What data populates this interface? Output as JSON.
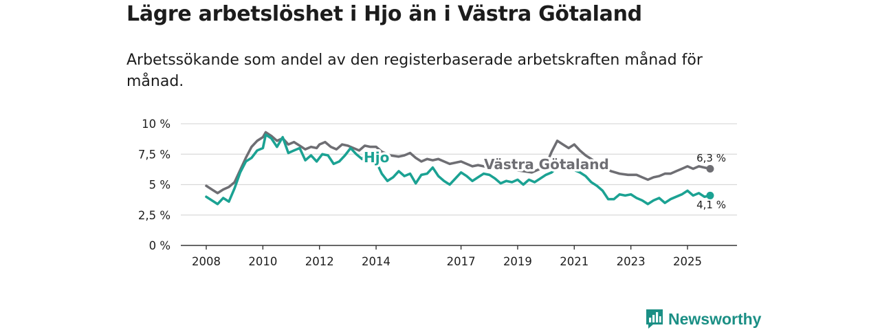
{
  "header": {
    "title": "Lägre arbetslöshet i Hjo än i Västra Götaland",
    "subtitle": "Arbetssökande som andel av den registerbaserade arbetskraften månad för månad."
  },
  "brand": {
    "name": "Newsworthy",
    "icon": "bar-chart-icon",
    "color": "#1b8f85"
  },
  "chart_data": {
    "type": "line",
    "title": "Lägre arbetslöshet i Hjo än i Västra Götaland",
    "subtitle": "Arbetssökande som andel av den registerbaserade arbetskraften månad för månad.",
    "xlabel": "",
    "ylabel": "",
    "xlim": [
      2007.5,
      2026.5
    ],
    "ylim": [
      0,
      10
    ],
    "grid": true,
    "y_ticks": [
      {
        "value": 0,
        "label": "0 %"
      },
      {
        "value": 2.5,
        "label": "2,5 %"
      },
      {
        "value": 5,
        "label": "5 %"
      },
      {
        "value": 7.5,
        "label": "7,5 %"
      },
      {
        "value": 10,
        "label": "10 %"
      }
    ],
    "x_ticks": [
      {
        "value": 2008,
        "label": "2008"
      },
      {
        "value": 2010,
        "label": "2010"
      },
      {
        "value": 2012,
        "label": "2012"
      },
      {
        "value": 2014,
        "label": "2014"
      },
      {
        "value": 2017,
        "label": "2017"
      },
      {
        "value": 2019,
        "label": "2019"
      },
      {
        "value": 2021,
        "label": "2021"
      },
      {
        "value": 2023,
        "label": "2023"
      },
      {
        "value": 2025,
        "label": "2025"
      }
    ],
    "series": [
      {
        "name": "Västra Götaland",
        "color": "#6e6e73",
        "label": "Västra Götaland",
        "end_label": "6,3 %",
        "points": [
          [
            2008.0,
            4.9
          ],
          [
            2008.2,
            4.6
          ],
          [
            2008.4,
            4.3
          ],
          [
            2008.6,
            4.6
          ],
          [
            2008.8,
            4.8
          ],
          [
            2009.0,
            5.2
          ],
          [
            2009.2,
            6.2
          ],
          [
            2009.4,
            7.2
          ],
          [
            2009.6,
            8.1
          ],
          [
            2009.8,
            8.6
          ],
          [
            2010.0,
            8.9
          ],
          [
            2010.1,
            9.3
          ],
          [
            2010.3,
            9.0
          ],
          [
            2010.5,
            8.6
          ],
          [
            2010.7,
            8.8
          ],
          [
            2010.9,
            8.3
          ],
          [
            2011.1,
            8.5
          ],
          [
            2011.3,
            8.2
          ],
          [
            2011.5,
            7.9
          ],
          [
            2011.7,
            8.1
          ],
          [
            2011.9,
            8.0
          ],
          [
            2012.0,
            8.3
          ],
          [
            2012.2,
            8.5
          ],
          [
            2012.4,
            8.1
          ],
          [
            2012.6,
            7.9
          ],
          [
            2012.8,
            8.3
          ],
          [
            2013.0,
            8.2
          ],
          [
            2013.2,
            8.0
          ],
          [
            2013.4,
            7.8
          ],
          [
            2013.6,
            8.2
          ],
          [
            2013.8,
            8.1
          ],
          [
            2014.0,
            8.1
          ],
          [
            2014.2,
            7.7
          ],
          [
            2014.5,
            7.4
          ],
          [
            2014.8,
            7.3
          ],
          [
            2015.0,
            7.4
          ],
          [
            2015.2,
            7.6
          ],
          [
            2015.4,
            7.2
          ],
          [
            2015.6,
            6.9
          ],
          [
            2015.8,
            7.1
          ],
          [
            2016.0,
            7.0
          ],
          [
            2016.2,
            7.1
          ],
          [
            2016.4,
            6.9
          ],
          [
            2016.6,
            6.7
          ],
          [
            2016.8,
            6.8
          ],
          [
            2017.0,
            6.9
          ],
          [
            2017.2,
            6.7
          ],
          [
            2017.4,
            6.5
          ],
          [
            2017.6,
            6.6
          ],
          [
            2017.8,
            6.5
          ],
          [
            2018.0,
            6.4
          ],
          [
            2018.3,
            6.3
          ],
          [
            2018.6,
            6.4
          ],
          [
            2018.9,
            6.2
          ],
          [
            2019.2,
            6.1
          ],
          [
            2019.5,
            6.0
          ],
          [
            2019.8,
            6.3
          ],
          [
            2020.0,
            6.6
          ],
          [
            2020.2,
            7.7
          ],
          [
            2020.4,
            8.6
          ],
          [
            2020.6,
            8.3
          ],
          [
            2020.8,
            8.0
          ],
          [
            2021.0,
            8.3
          ],
          [
            2021.2,
            7.8
          ],
          [
            2021.4,
            7.4
          ],
          [
            2021.6,
            7.1
          ],
          [
            2021.8,
            6.8
          ],
          [
            2022.0,
            6.5
          ],
          [
            2022.3,
            6.1
          ],
          [
            2022.6,
            5.9
          ],
          [
            2022.9,
            5.8
          ],
          [
            2023.2,
            5.8
          ],
          [
            2023.4,
            5.6
          ],
          [
            2023.6,
            5.4
          ],
          [
            2023.8,
            5.6
          ],
          [
            2024.0,
            5.7
          ],
          [
            2024.2,
            5.9
          ],
          [
            2024.4,
            5.9
          ],
          [
            2024.6,
            6.1
          ],
          [
            2024.8,
            6.3
          ],
          [
            2025.0,
            6.5
          ],
          [
            2025.2,
            6.3
          ],
          [
            2025.4,
            6.5
          ],
          [
            2025.6,
            6.4
          ],
          [
            2025.8,
            6.3
          ]
        ]
      },
      {
        "name": "Hjo",
        "color": "#1ba293",
        "label": "Hjo",
        "end_label": "4,1 %",
        "points": [
          [
            2008.0,
            4.0
          ],
          [
            2008.2,
            3.7
          ],
          [
            2008.4,
            3.4
          ],
          [
            2008.6,
            3.9
          ],
          [
            2008.8,
            3.6
          ],
          [
            2009.0,
            4.7
          ],
          [
            2009.2,
            6.0
          ],
          [
            2009.4,
            6.9
          ],
          [
            2009.6,
            7.2
          ],
          [
            2009.8,
            7.8
          ],
          [
            2010.0,
            8.0
          ],
          [
            2010.1,
            9.1
          ],
          [
            2010.3,
            8.8
          ],
          [
            2010.5,
            8.1
          ],
          [
            2010.7,
            8.9
          ],
          [
            2010.9,
            7.6
          ],
          [
            2011.1,
            7.8
          ],
          [
            2011.3,
            8.0
          ],
          [
            2011.5,
            7.0
          ],
          [
            2011.7,
            7.4
          ],
          [
            2011.9,
            6.9
          ],
          [
            2012.1,
            7.5
          ],
          [
            2012.3,
            7.4
          ],
          [
            2012.5,
            6.7
          ],
          [
            2012.7,
            6.9
          ],
          [
            2012.9,
            7.4
          ],
          [
            2013.1,
            8.0
          ],
          [
            2013.3,
            7.5
          ],
          [
            2013.5,
            7.1
          ],
          [
            2013.7,
            7.6
          ],
          [
            2013.9,
            7.4
          ],
          [
            2014.0,
            6.9
          ],
          [
            2014.2,
            5.9
          ],
          [
            2014.4,
            5.3
          ],
          [
            2014.6,
            5.6
          ],
          [
            2014.8,
            6.1
          ],
          [
            2015.0,
            5.7
          ],
          [
            2015.2,
            5.9
          ],
          [
            2015.4,
            5.1
          ],
          [
            2015.6,
            5.8
          ],
          [
            2015.8,
            5.9
          ],
          [
            2016.0,
            6.4
          ],
          [
            2016.2,
            5.7
          ],
          [
            2016.4,
            5.3
          ],
          [
            2016.6,
            5.0
          ],
          [
            2016.8,
            5.5
          ],
          [
            2017.0,
            6.0
          ],
          [
            2017.2,
            5.7
          ],
          [
            2017.4,
            5.3
          ],
          [
            2017.6,
            5.6
          ],
          [
            2017.8,
            5.9
          ],
          [
            2018.0,
            5.8
          ],
          [
            2018.2,
            5.5
          ],
          [
            2018.4,
            5.1
          ],
          [
            2018.6,
            5.3
          ],
          [
            2018.8,
            5.2
          ],
          [
            2019.0,
            5.4
          ],
          [
            2019.2,
            5.0
          ],
          [
            2019.4,
            5.4
          ],
          [
            2019.6,
            5.2
          ],
          [
            2019.8,
            5.5
          ],
          [
            2020.0,
            5.8
          ],
          [
            2020.2,
            6.0
          ],
          [
            2020.4,
            6.4
          ],
          [
            2020.6,
            6.3
          ],
          [
            2020.8,
            6.5
          ],
          [
            2021.0,
            6.2
          ],
          [
            2021.2,
            6.0
          ],
          [
            2021.4,
            5.7
          ],
          [
            2021.6,
            5.2
          ],
          [
            2021.8,
            4.9
          ],
          [
            2022.0,
            4.5
          ],
          [
            2022.2,
            3.8
          ],
          [
            2022.4,
            3.8
          ],
          [
            2022.6,
            4.2
          ],
          [
            2022.8,
            4.1
          ],
          [
            2023.0,
            4.2
          ],
          [
            2023.2,
            3.9
          ],
          [
            2023.4,
            3.7
          ],
          [
            2023.6,
            3.4
          ],
          [
            2023.8,
            3.7
          ],
          [
            2024.0,
            3.9
          ],
          [
            2024.2,
            3.5
          ],
          [
            2024.4,
            3.8
          ],
          [
            2024.6,
            4.0
          ],
          [
            2024.8,
            4.2
          ],
          [
            2025.0,
            4.5
          ],
          [
            2025.2,
            4.1
          ],
          [
            2025.4,
            4.3
          ],
          [
            2025.6,
            4.0
          ],
          [
            2025.8,
            4.1
          ]
        ]
      }
    ]
  }
}
